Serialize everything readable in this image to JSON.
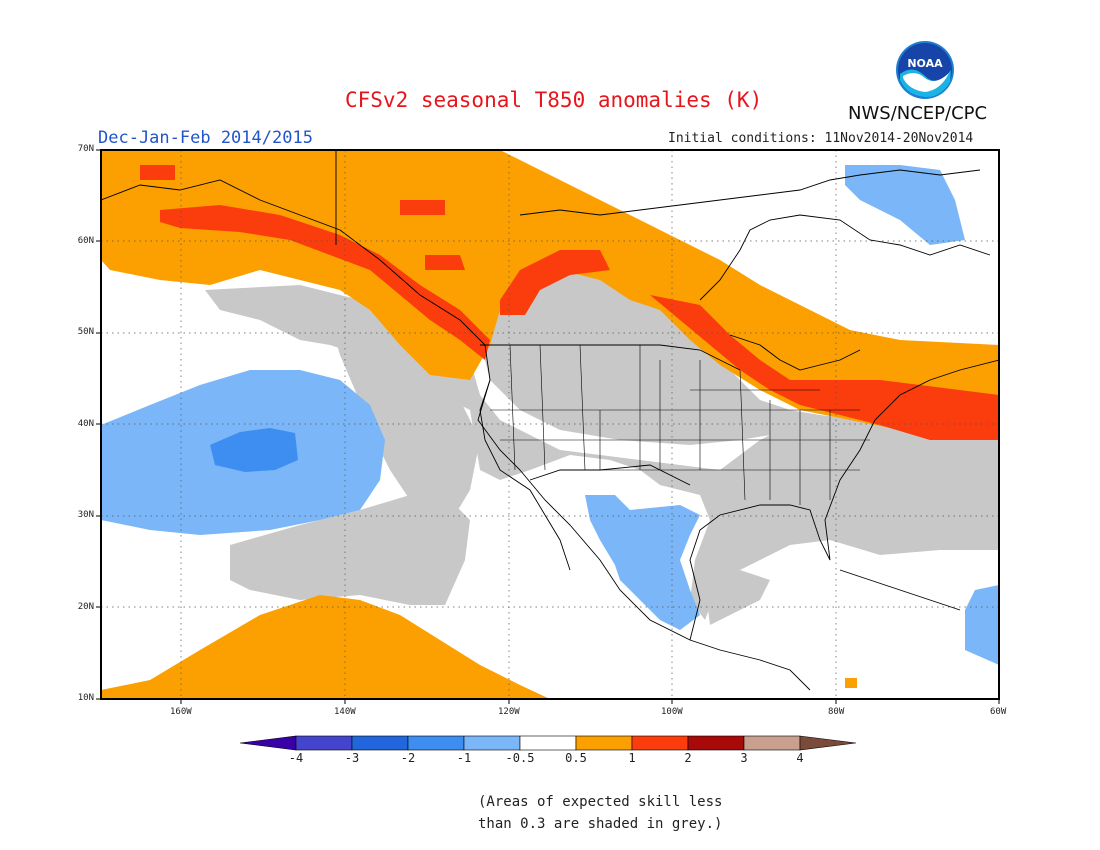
{
  "title": "CFSv2 seasonal T850 anomalies (K)",
  "period": "Dec-Jan-Feb 2014/2015",
  "initial_conditions": "Initial conditions: 11Nov2014-20Nov2014",
  "agency": "NWS/NCEP/CPC",
  "logo_text": "NOAA",
  "footnote": {
    "line1": "(Areas of expected skill less",
    "line2": "than 0.3 are shaded in grey.)"
  },
  "lat_labels": [
    "70N",
    "60N",
    "50N",
    "40N",
    "30N",
    "20N",
    "10N"
  ],
  "lon_labels": [
    "160W",
    "140W",
    "120W",
    "100W",
    "80W",
    "60W"
  ],
  "colorbar": {
    "labels": [
      "-4",
      "-3",
      "-2",
      "-1",
      "-0.5",
      "0.5",
      "1",
      "2",
      "3",
      "4"
    ],
    "colors": [
      "#3a00a8",
      "#4444cc",
      "#2266dd",
      "#3d8ef0",
      "#7ab6f8",
      "#ffffff",
      "#fba000",
      "#fb3c0c",
      "#a80a0a",
      "#c9a08d",
      "#7b4b3a"
    ],
    "grey_color": "#c8c8c8"
  }
}
